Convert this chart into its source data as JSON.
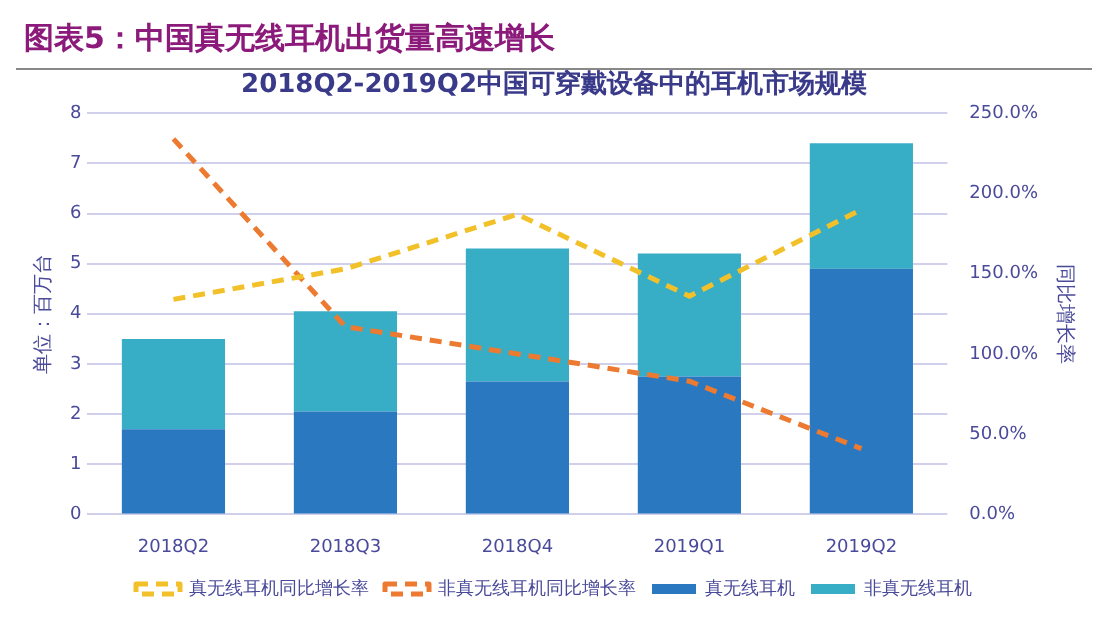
{
  "chart_data": {
    "type": "bar",
    "title": "图表5：中国真无线耳机出货量高速增长",
    "subtitle": "2018Q2-2019Q2中国可穿戴设备中的耳机市场规模",
    "ylabel": "单位：百万台",
    "y2label": "同比增长率",
    "categories": [
      "2018Q2",
      "2018Q3",
      "2018Q4",
      "2019Q1",
      "2019Q2"
    ],
    "series": [
      {
        "name": "真无线耳机",
        "color": "#2a78c0",
        "values": [
          1.7,
          2.05,
          2.65,
          2.75,
          4.9
        ]
      },
      {
        "name": "非真无线耳机",
        "color": "#38adc6",
        "values": [
          1.8,
          2.0,
          2.65,
          2.45,
          2.5
        ]
      },
      {
        "name": "真无线耳机同比增长率",
        "type": "line",
        "axis": "y2",
        "line_style": "dashed",
        "color": "#f2c028",
        "values": [
          134,
          153,
          187,
          136,
          190
        ]
      },
      {
        "name": "非真无线耳机同比增长率",
        "type": "line",
        "axis": "y2",
        "line_style": "dashed",
        "color": "#ec7a30",
        "values": [
          234,
          117,
          100,
          83,
          41
        ]
      }
    ],
    "stacked": true,
    "ylim": [
      0,
      8
    ],
    "yticks": [
      0,
      1,
      2,
      3,
      4,
      5,
      6,
      7,
      8
    ],
    "y2lim": [
      0,
      250
    ],
    "y2ticks": [
      {
        "value": 0,
        "label": "0.0%"
      },
      {
        "value": 50,
        "label": "50.0%"
      },
      {
        "value": 100,
        "label": "100.0%"
      },
      {
        "value": 150,
        "label": "150.0%"
      },
      {
        "value": 200,
        "label": "200.0%"
      },
      {
        "value": 250,
        "label": "250.0%"
      }
    ],
    "grid": "y",
    "legend": "bottom",
    "marker": "none"
  }
}
